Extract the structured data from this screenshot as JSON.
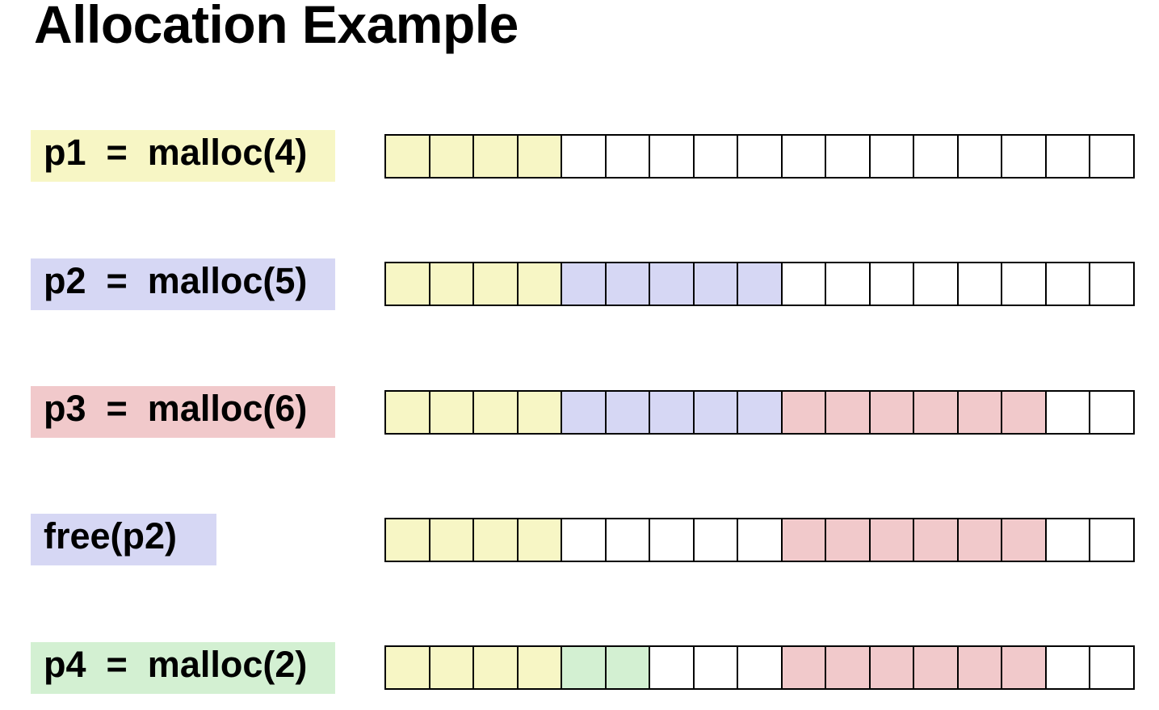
{
  "title": "Allocation Example",
  "colors": {
    "free": "#ffffff",
    "p1": "#f7f6c5",
    "p2": "#d6d7f4",
    "p3": "#f1c9cb",
    "p4": "#d3f0d2"
  },
  "heap_size": 17,
  "steps": [
    {
      "label": "p1  =  malloc(4)",
      "label_color": "p1",
      "cells": [
        "p1",
        "p1",
        "p1",
        "p1",
        "free",
        "free",
        "free",
        "free",
        "free",
        "free",
        "free",
        "free",
        "free",
        "free",
        "free",
        "free",
        "free"
      ]
    },
    {
      "label": "p2  =  malloc(5)",
      "label_color": "p2",
      "cells": [
        "p1",
        "p1",
        "p1",
        "p1",
        "p2",
        "p2",
        "p2",
        "p2",
        "p2",
        "free",
        "free",
        "free",
        "free",
        "free",
        "free",
        "free",
        "free"
      ]
    },
    {
      "label": "p3  =  malloc(6)",
      "label_color": "p3",
      "cells": [
        "p1",
        "p1",
        "p1",
        "p1",
        "p2",
        "p2",
        "p2",
        "p2",
        "p2",
        "p3",
        "p3",
        "p3",
        "p3",
        "p3",
        "p3",
        "free",
        "free"
      ]
    },
    {
      "label": "free(p2)",
      "label_color": "p2",
      "cells": [
        "p1",
        "p1",
        "p1",
        "p1",
        "free",
        "free",
        "free",
        "free",
        "free",
        "p3",
        "p3",
        "p3",
        "p3",
        "p3",
        "p3",
        "free",
        "free"
      ]
    },
    {
      "label": "p4  =  malloc(2)",
      "label_color": "p4",
      "cells": [
        "p1",
        "p1",
        "p1",
        "p1",
        "p4",
        "p4",
        "free",
        "free",
        "free",
        "p3",
        "p3",
        "p3",
        "p3",
        "p3",
        "p3",
        "free",
        "free"
      ]
    }
  ]
}
